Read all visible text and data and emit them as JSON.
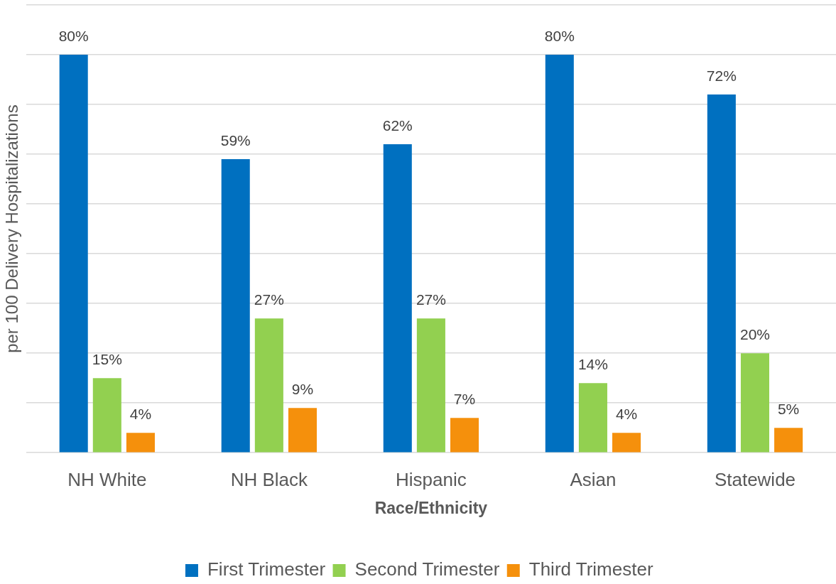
{
  "chart_data": {
    "type": "bar",
    "xlabel": "Race/Ethnicity",
    "ylabel": "per 100 Delivery Hospitalizations",
    "categories": [
      "NH White",
      "NH Black",
      "Hispanic",
      "Asian",
      "Statewide"
    ],
    "series": [
      {
        "name": "First Trimester",
        "color": "#0070c0",
        "values": [
          80,
          59,
          62,
          80,
          72
        ],
        "value_labels": [
          "80%",
          "59%",
          "62%",
          "80%",
          "72%"
        ]
      },
      {
        "name": "Second Trimester",
        "color": "#92d050",
        "values": [
          15,
          27,
          27,
          14,
          20
        ],
        "value_labels": [
          "15%",
          "27%",
          "27%",
          "14%",
          "20%"
        ]
      },
      {
        "name": "Third Trimester",
        "color": "#f5900c",
        "values": [
          4,
          9,
          7,
          4,
          5
        ],
        "value_labels": [
          "4%",
          "9%",
          "7%",
          "4%",
          "5%"
        ]
      }
    ],
    "ylim": [
      0,
      90
    ],
    "yticks": [
      {
        "value": 0,
        "label": null
      },
      {
        "value": 10,
        "label": null
      },
      {
        "value": 20,
        "label": null
      },
      {
        "value": 30,
        "label": null
      },
      {
        "value": 40,
        "label": null
      },
      {
        "value": 50,
        "label": null
      },
      {
        "value": 60,
        "label": null
      },
      {
        "value": 70,
        "label": null
      },
      {
        "value": 80,
        "label": null
      },
      {
        "value": 90,
        "label": null
      }
    ],
    "grid": "y",
    "legend": "bottom",
    "tick_labels": "x"
  }
}
